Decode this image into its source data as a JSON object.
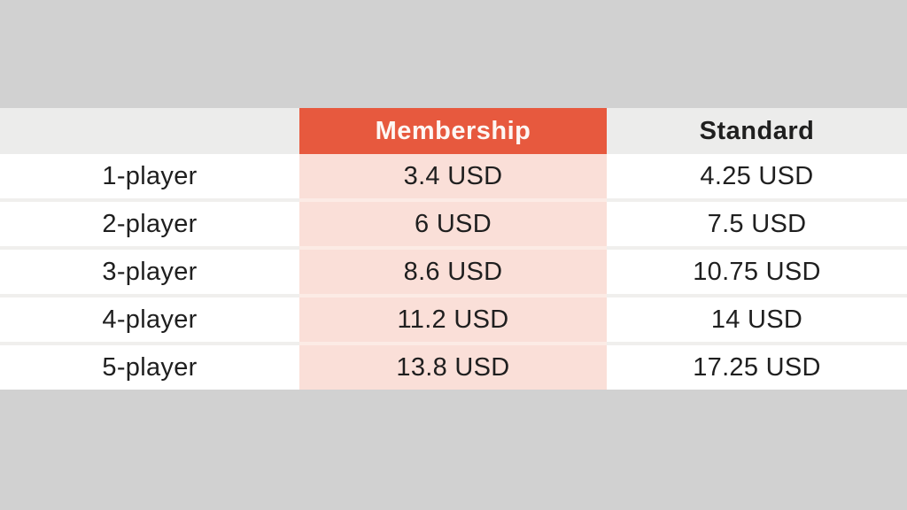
{
  "colors": {
    "page_background": "#d1d1d1",
    "header_background": "#ececeb",
    "highlight_header": "#e7593e",
    "highlight_cell": "#fadfd8",
    "row_background": "#ffffff",
    "text_dark": "#1f1f1f",
    "text_light": "#fdf7f4"
  },
  "table": {
    "headers": [
      "",
      "Membership",
      "Standard"
    ],
    "rows": [
      {
        "tier": "1-player",
        "membership": "3.4 USD",
        "standard": "4.25 USD"
      },
      {
        "tier": "2-player",
        "membership": "6 USD",
        "standard": "7.5 USD"
      },
      {
        "tier": "3-player",
        "membership": "8.6 USD",
        "standard": "10.75 USD"
      },
      {
        "tier": "4-player",
        "membership": "11.2 USD",
        "standard": "14 USD"
      },
      {
        "tier": "5-player",
        "membership": "13.8 USD",
        "standard": "17.25 USD"
      }
    ]
  },
  "chart_data": {
    "type": "table",
    "title": "",
    "columns": [
      "",
      "Membership",
      "Standard"
    ],
    "rows": [
      [
        "1-player",
        "3.4 USD",
        "4.25 USD"
      ],
      [
        "2-player",
        "6 USD",
        "7.5 USD"
      ],
      [
        "3-player",
        "8.6 USD",
        "10.75 USD"
      ],
      [
        "4-player",
        "11.2 USD",
        "14 USD"
      ],
      [
        "5-player",
        "13.8 USD",
        "17.25 USD"
      ]
    ],
    "categories": [
      "1-player",
      "2-player",
      "3-player",
      "4-player",
      "5-player"
    ],
    "series": [
      {
        "name": "Membership",
        "unit": "USD",
        "values": [
          3.4,
          6,
          8.6,
          11.2,
          13.8
        ]
      },
      {
        "name": "Standard",
        "unit": "USD",
        "values": [
          4.25,
          7.5,
          10.75,
          14,
          17.25
        ]
      }
    ],
    "layout_hints": {
      "highlighted_column": "Membership",
      "grid": "horizontal-separators",
      "legend": "none"
    }
  }
}
